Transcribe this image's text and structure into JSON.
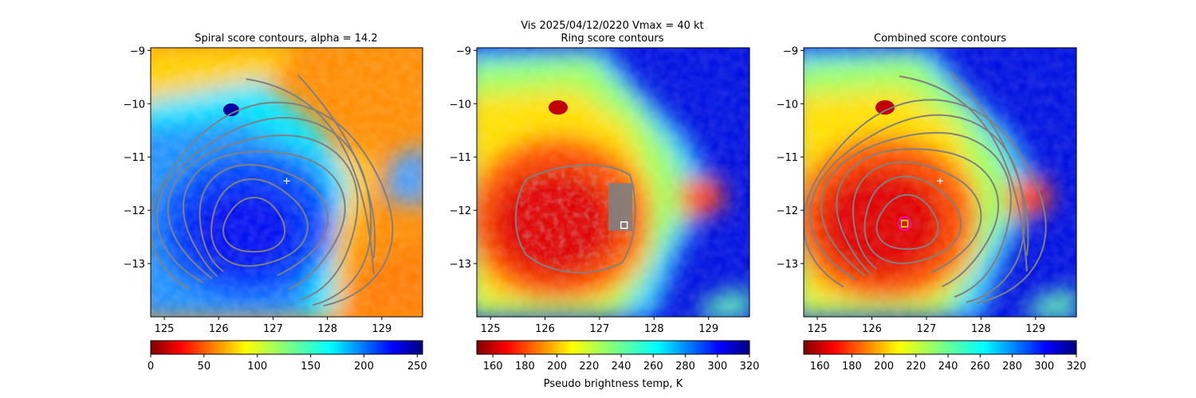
{
  "figure": {
    "suptitle": "Vis  2025/04/12/0220    Vmax = 40 kt",
    "colorbar_label": "Pseudo brightness temp, K"
  },
  "chart_data": [
    {
      "type": "heatmap",
      "title": "Spiral score contours, alpha = 14.2",
      "xlim": [
        124.75,
        129.75
      ],
      "ylim": [
        -14.0,
        -8.95
      ],
      "xticks": [
        125,
        126,
        127,
        128,
        129
      ],
      "yticks": [
        -9,
        -10,
        -11,
        -12,
        -13
      ],
      "colormap": "jet_r",
      "colorbar": {
        "range": [
          0,
          255
        ],
        "ticks": [
          0,
          50,
          100,
          150,
          200,
          250
        ]
      },
      "contour_center": [
        126.65,
        -12.3
      ],
      "contour_color": "#808080",
      "markers": [
        {
          "shape": "plus",
          "lon": 127.25,
          "lat": -11.45,
          "color": "#ffffff"
        }
      ]
    },
    {
      "type": "heatmap",
      "title": "Ring score contours",
      "xlim": [
        124.75,
        129.75
      ],
      "ylim": [
        -14.0,
        -8.95
      ],
      "xticks": [
        125,
        126,
        127,
        128,
        129
      ],
      "yticks": [
        -9,
        -10,
        -11,
        -12,
        -13
      ],
      "colormap": "jet",
      "colorbar": {
        "range": [
          150,
          320
        ],
        "ticks": [
          160,
          180,
          200,
          220,
          240,
          260,
          280,
          300,
          320
        ]
      },
      "contour_color": "#808080",
      "markers": [
        {
          "shape": "square",
          "lon": 127.45,
          "lat": -12.28,
          "color": "#ffffff"
        }
      ]
    },
    {
      "type": "heatmap",
      "title": "Combined score contours",
      "xlim": [
        124.75,
        129.75
      ],
      "ylim": [
        -14.0,
        -8.95
      ],
      "xticks": [
        125,
        126,
        127,
        128,
        129
      ],
      "yticks": [
        -9,
        -10,
        -11,
        -12,
        -13
      ],
      "colormap": "jet",
      "colorbar": {
        "range": [
          150,
          320
        ],
        "ticks": [
          160,
          180,
          200,
          220,
          240,
          260,
          280,
          300,
          320
        ]
      },
      "contour_center": [
        126.65,
        -12.25
      ],
      "contour_color": "#808080",
      "markers": [
        {
          "shape": "plus",
          "lon": 127.25,
          "lat": -11.45,
          "color": "#ffffff"
        },
        {
          "shape": "square",
          "lon": 126.6,
          "lat": -12.25,
          "color": "#ffff00"
        },
        {
          "shape": "circle",
          "lon": 126.6,
          "lat": -12.25,
          "color": "#ff00ff"
        }
      ]
    }
  ]
}
